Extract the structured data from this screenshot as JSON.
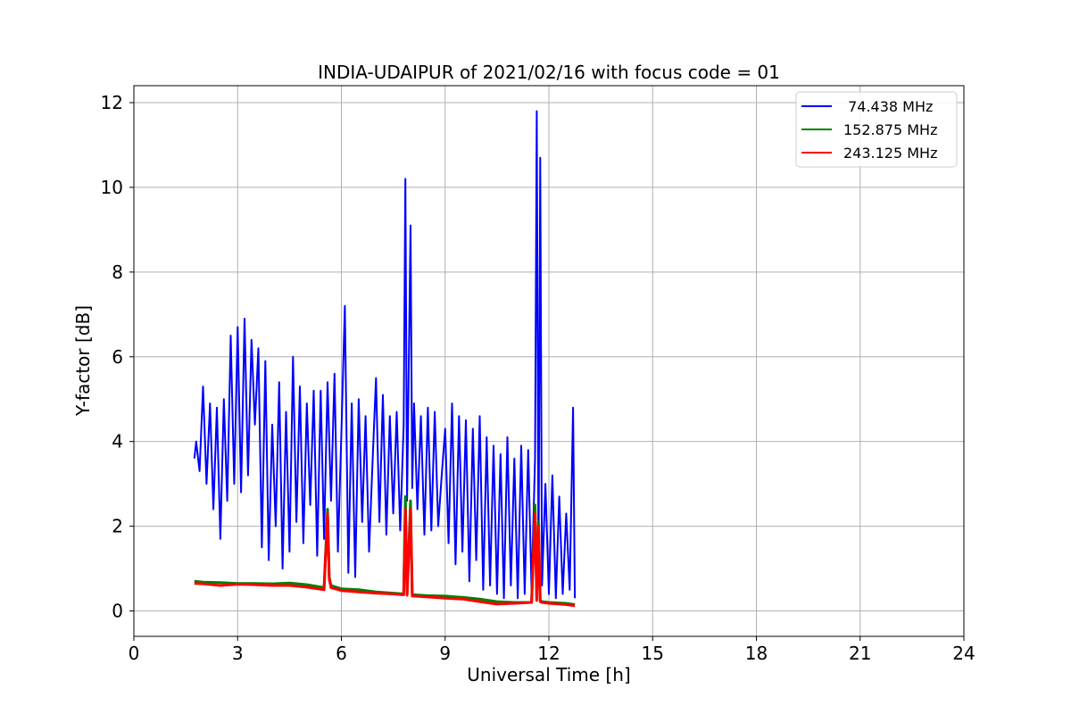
{
  "chart_data": {
    "type": "line",
    "title": "INDIA-UDAIPUR of 2021/02/16 with focus code = 01",
    "xlabel": "Universal Time [h]",
    "ylabel": "Y-factor [dB]",
    "xlim": [
      0,
      24
    ],
    "ylim": [
      -0.6,
      12.4
    ],
    "xticks": [
      0,
      3,
      6,
      9,
      12,
      15,
      18,
      21,
      24
    ],
    "yticks": [
      0,
      2,
      4,
      6,
      8,
      10,
      12
    ],
    "grid": true,
    "legend_position": "top-right",
    "series": [
      {
        "name": " 74.438 MHz",
        "color": "#0000ff",
        "x": [
          1.75,
          1.8,
          1.9,
          2.0,
          2.1,
          2.2,
          2.3,
          2.4,
          2.5,
          2.6,
          2.7,
          2.8,
          2.9,
          3.0,
          3.1,
          3.2,
          3.3,
          3.4,
          3.5,
          3.6,
          3.7,
          3.8,
          3.9,
          4.0,
          4.1,
          4.2,
          4.3,
          4.4,
          4.5,
          4.6,
          4.7,
          4.8,
          4.9,
          5.0,
          5.1,
          5.2,
          5.3,
          5.4,
          5.5,
          5.6,
          5.7,
          5.8,
          5.9,
          6.0,
          6.1,
          6.2,
          6.3,
          6.4,
          6.5,
          6.6,
          6.7,
          6.8,
          6.9,
          7.0,
          7.1,
          7.2,
          7.3,
          7.4,
          7.5,
          7.6,
          7.7,
          7.8,
          7.85,
          7.9,
          8.0,
          8.05,
          8.1,
          8.2,
          8.3,
          8.4,
          8.5,
          8.6,
          8.7,
          8.8,
          8.9,
          9.0,
          9.1,
          9.2,
          9.3,
          9.4,
          9.5,
          9.6,
          9.7,
          9.8,
          9.9,
          10.0,
          10.1,
          10.2,
          10.3,
          10.4,
          10.5,
          10.6,
          10.7,
          10.8,
          10.9,
          11.0,
          11.1,
          11.2,
          11.3,
          11.4,
          11.5,
          11.6,
          11.65,
          11.7,
          11.75,
          11.8,
          11.9,
          12.0,
          12.1,
          12.2,
          12.3,
          12.4,
          12.5,
          12.6,
          12.7,
          12.75
        ],
        "y": [
          3.6,
          4.0,
          3.3,
          5.3,
          3.0,
          4.9,
          2.4,
          4.8,
          1.7,
          5.0,
          2.6,
          6.5,
          3.0,
          6.7,
          2.8,
          6.9,
          3.2,
          6.4,
          4.4,
          6.2,
          1.5,
          5.9,
          1.2,
          4.4,
          2.0,
          5.4,
          1.0,
          4.7,
          1.4,
          6.0,
          2.1,
          5.3,
          1.6,
          4.9,
          2.5,
          5.2,
          1.3,
          5.2,
          1.7,
          5.4,
          2.6,
          5.6,
          1.4,
          4.2,
          7.2,
          0.9,
          4.9,
          0.8,
          5.0,
          2.1,
          4.6,
          1.4,
          3.5,
          5.5,
          2.1,
          5.1,
          1.8,
          4.6,
          2.3,
          4.7,
          1.9,
          4.4,
          10.2,
          2.6,
          9.1,
          2.9,
          4.9,
          2.4,
          4.6,
          1.8,
          4.8,
          1.9,
          4.7,
          2.0,
          3.2,
          4.3,
          1.6,
          4.9,
          1.1,
          4.6,
          1.4,
          4.5,
          0.7,
          4.3,
          1.2,
          4.6,
          0.5,
          4.1,
          0.6,
          3.9,
          0.4,
          3.7,
          0.3,
          4.1,
          0.6,
          3.6,
          0.3,
          3.9,
          0.4,
          3.8,
          0.5,
          3.6,
          11.8,
          1.0,
          10.7,
          0.6,
          3.0,
          0.4,
          3.2,
          0.3,
          2.7,
          0.4,
          2.3,
          0.5,
          4.8,
          0.3
        ]
      },
      {
        "name": "152.875 MHz",
        "color": "#008000",
        "x": [
          1.75,
          2.0,
          2.5,
          3.0,
          3.5,
          4.0,
          4.5,
          5.0,
          5.5,
          5.6,
          5.65,
          5.7,
          6.0,
          6.5,
          7.0,
          7.5,
          7.8,
          7.85,
          7.9,
          8.0,
          8.05,
          8.1,
          8.5,
          9.0,
          9.5,
          10.0,
          10.5,
          11.0,
          11.5,
          11.6,
          11.65,
          11.7,
          11.75,
          11.8,
          12.0,
          12.5,
          12.75
        ],
        "y": [
          0.7,
          0.68,
          0.67,
          0.65,
          0.65,
          0.64,
          0.66,
          0.62,
          0.55,
          2.4,
          0.8,
          0.6,
          0.52,
          0.5,
          0.45,
          0.42,
          0.4,
          2.7,
          0.4,
          2.6,
          0.38,
          0.38,
          0.36,
          0.35,
          0.32,
          0.28,
          0.22,
          0.2,
          0.2,
          2.5,
          0.3,
          2.1,
          0.25,
          0.22,
          0.2,
          0.18,
          0.15
        ]
      },
      {
        "name": "243.125 MHz",
        "color": "#ff0000",
        "x": [
          1.75,
          2.0,
          2.5,
          3.0,
          3.5,
          4.0,
          4.5,
          5.0,
          5.5,
          5.6,
          5.65,
          5.7,
          6.0,
          6.5,
          7.0,
          7.5,
          7.8,
          7.85,
          7.9,
          8.0,
          8.05,
          8.1,
          8.5,
          9.0,
          9.5,
          10.0,
          10.5,
          11.0,
          11.5,
          11.6,
          11.65,
          11.7,
          11.75,
          11.8,
          12.0,
          12.5,
          12.75
        ],
        "y": [
          0.65,
          0.64,
          0.6,
          0.63,
          0.62,
          0.6,
          0.6,
          0.56,
          0.5,
          2.3,
          0.75,
          0.55,
          0.48,
          0.45,
          0.42,
          0.4,
          0.38,
          2.4,
          0.37,
          2.4,
          0.35,
          0.35,
          0.33,
          0.3,
          0.28,
          0.22,
          0.16,
          0.18,
          0.2,
          2.3,
          0.25,
          2.0,
          0.22,
          0.2,
          0.18,
          0.15,
          0.12
        ]
      }
    ]
  }
}
